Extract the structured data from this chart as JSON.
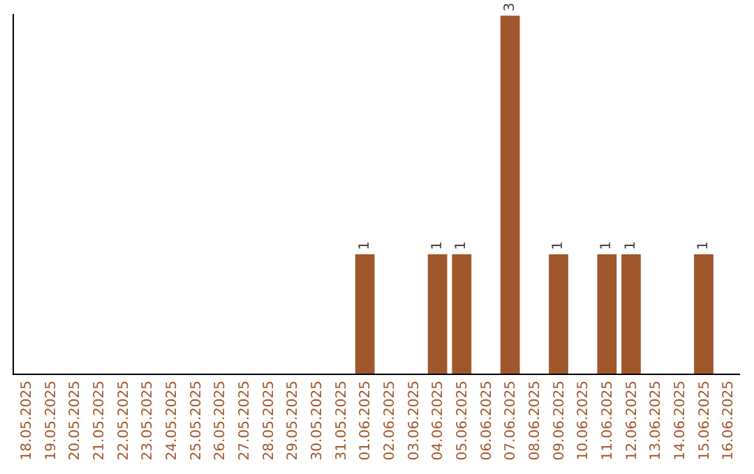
{
  "chart_data": {
    "type": "bar",
    "categories": [
      "18.05.2025",
      "19.05.2025",
      "20.05.2025",
      "21.05.2025",
      "22.05.2025",
      "23.05.2025",
      "24.05.2025",
      "25.05.2025",
      "26.05.2025",
      "27.05.2025",
      "28.05.2025",
      "29.05.2025",
      "30.05.2025",
      "31.05.2025",
      "01.06.2025",
      "02.06.2025",
      "03.06.2025",
      "04.06.2025",
      "05.06.2025",
      "06.06.2025",
      "07.06.2025",
      "08.06.2025",
      "09.06.2025",
      "10.06.2025",
      "11.06.2025",
      "12.06.2025",
      "13.06.2025",
      "14.06.2025",
      "15.06.2025",
      "16.06.2025"
    ],
    "values": [
      null,
      null,
      null,
      null,
      null,
      null,
      null,
      null,
      null,
      null,
      null,
      null,
      null,
      null,
      1,
      null,
      null,
      1,
      1,
      null,
      3,
      null,
      1,
      null,
      1,
      1,
      null,
      null,
      1,
      null
    ],
    "value_labels": [
      null,
      null,
      null,
      null,
      null,
      null,
      null,
      null,
      null,
      null,
      null,
      null,
      null,
      null,
      "1",
      null,
      null,
      "1",
      "1",
      null,
      "3",
      null,
      "1",
      null,
      "1",
      "1",
      null,
      null,
      "1",
      null
    ],
    "color": "#a0572b",
    "tick_labels": "x",
    "grid": false
  }
}
